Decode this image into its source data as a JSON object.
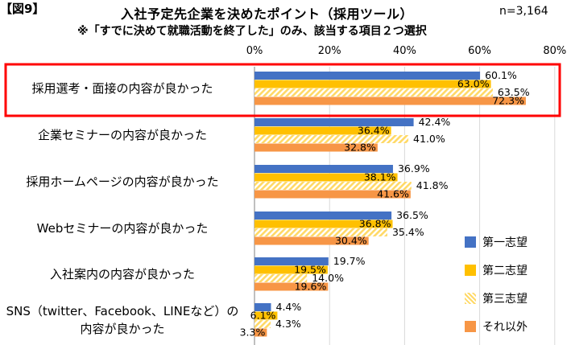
{
  "header": {
    "figure_label": "【図9】",
    "title": "入社予定先企業を決めたポイント（採用ツール）",
    "n_label": "n=3,164",
    "subtitle": "※「すでに決めて就職活動を終了した」のみ、該当する項目２つ選択"
  },
  "colors": {
    "first": "#4472C4",
    "second": "#FFC000",
    "third": "#FFD966",
    "other": "#F79646",
    "highlight": "#FF0000",
    "grid": "#D9D9D9"
  },
  "chart_data": {
    "type": "bar",
    "orientation": "horizontal",
    "xlim": [
      0,
      80
    ],
    "x_ticks": [
      "0%",
      "20%",
      "40%",
      "60%",
      "80%"
    ],
    "categories": [
      "採用選考・面接の内容が良かった",
      "企業セミナーの内容が良かった",
      "採用ホームページの内容が良かった",
      "Webセミナーの内容が良かった",
      "入社案内の内容が良かった",
      "SNS（twitter、Facebook、LINEなど）の\n内容が良かった"
    ],
    "series": [
      {
        "name": "第一志望",
        "values": [
          60.1,
          42.4,
          36.9,
          36.5,
          19.7,
          4.4
        ]
      },
      {
        "name": "第二志望",
        "values": [
          63.0,
          36.4,
          38.1,
          36.8,
          19.5,
          6.1
        ]
      },
      {
        "name": "第三志望",
        "values": [
          63.5,
          41.0,
          41.8,
          35.4,
          14.0,
          4.3
        ]
      },
      {
        "name": "それ以外",
        "values": [
          72.3,
          32.8,
          41.6,
          30.4,
          19.6,
          3.3
        ]
      }
    ],
    "value_labels": [
      [
        "60.1%",
        "42.4%",
        "36.9%",
        "36.5%",
        "19.7%",
        "4.4%"
      ],
      [
        "63.0%",
        "36.4%",
        "38.1%",
        "36.8%",
        "19.5%",
        "6.1%"
      ],
      [
        "63.5%",
        "41.0%",
        "41.8%",
        "35.4%",
        "14.0%",
        "4.3%"
      ],
      [
        "72.3%",
        "32.8%",
        "41.6%",
        "30.4%",
        "19.6%",
        "3.3%"
      ]
    ],
    "highlighted_category": "採用選考・面接の内容が良かった",
    "grid": true,
    "legend_position": "right"
  }
}
